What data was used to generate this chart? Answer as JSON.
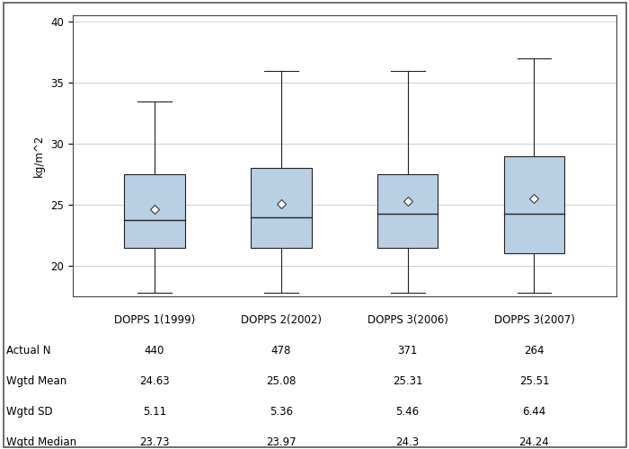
{
  "ylabel": "kg/m^2",
  "ylim": [
    17.5,
    40.5
  ],
  "yticks": [
    20,
    25,
    30,
    35,
    40
  ],
  "categories": [
    "DOPPS 1(1999)",
    "DOPPS 2(2002)",
    "DOPPS 3(2006)",
    "DOPPS 3(2007)"
  ],
  "boxes": [
    {
      "q1": 21.5,
      "median": 23.73,
      "q3": 27.5,
      "whisker_low": 17.8,
      "whisker_high": 33.5,
      "mean": 24.63
    },
    {
      "q1": 21.5,
      "median": 23.97,
      "q3": 28.0,
      "whisker_low": 17.8,
      "whisker_high": 36.0,
      "mean": 25.08
    },
    {
      "q1": 21.5,
      "median": 24.3,
      "q3": 27.5,
      "whisker_low": 17.8,
      "whisker_high": 36.0,
      "mean": 25.31
    },
    {
      "q1": 21.0,
      "median": 24.24,
      "q3": 29.0,
      "whisker_low": 17.8,
      "whisker_high": 37.0,
      "mean": 25.51
    }
  ],
  "actual_n": [
    "440",
    "478",
    "371",
    "264"
  ],
  "wgtd_mean": [
    "24.63",
    "25.08",
    "25.31",
    "25.51"
  ],
  "wgtd_sd": [
    "5.11",
    "5.36",
    "5.46",
    "6.44"
  ],
  "wgtd_median": [
    "23.73",
    "23.97",
    "24.3",
    "24.24"
  ],
  "box_color": "#b8cfe4",
  "box_edge_color": "#222222",
  "whisker_color": "#222222",
  "median_color": "#222222",
  "mean_marker_facecolor": "#ffffff",
  "mean_marker_edgecolor": "#222222",
  "grid_color": "#d0d0d0",
  "bg_color": "#ffffff",
  "table_row_labels": [
    "Actual N",
    "Wgtd Mean",
    "Wgtd SD",
    "Wgtd Median"
  ],
  "font_size": 8.5,
  "box_width": 0.48
}
